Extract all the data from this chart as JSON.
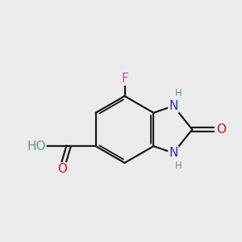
{
  "bg_color": "#ebebeb",
  "bond_color": "#1a1a1a",
  "bond_width": 1.6,
  "atom_colors": {
    "N": "#2233cc",
    "H_on_N": "#669999",
    "H_on_O": "#669999",
    "O": "#dd1111",
    "F": "#cc44bb",
    "C": "#1a1a1a"
  },
  "font_size_main": 11,
  "font_size_small": 8.5,
  "xlim": [
    0,
    10
  ],
  "ylim": [
    0,
    10
  ]
}
